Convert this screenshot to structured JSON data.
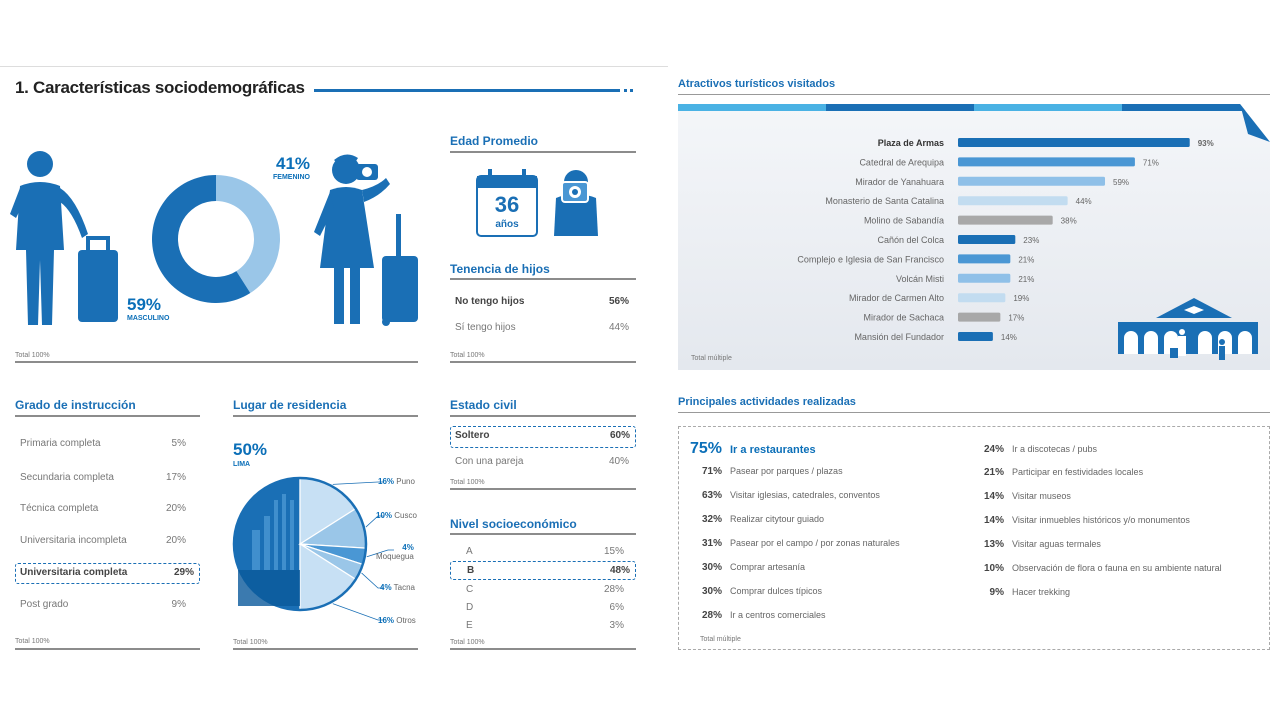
{
  "section_title": "1. Características sociodemográficas",
  "gender": {
    "female_pct": "41%",
    "female_label": "FEMENINO",
    "male_pct": "59%",
    "male_label": "MASCULINO",
    "total": "Total 100%"
  },
  "edad": {
    "title": "Edad Promedio",
    "value": "36",
    "unit": "años"
  },
  "hijos": {
    "title": "Tenencia de hijos",
    "rows": [
      {
        "label": "No tengo hijos",
        "value": "56%"
      },
      {
        "label": "Sí tengo hijos",
        "value": "44%"
      }
    ],
    "total": "Total 100%"
  },
  "instruccion": {
    "title": "Grado de instrucción",
    "rows": [
      {
        "label": "Primaria completa",
        "value": "5%"
      },
      {
        "label": "Secundaria completa",
        "value": "17%"
      },
      {
        "label": "Técnica completa",
        "value": "20%"
      },
      {
        "label": "Universitaria incompleta",
        "value": "20%"
      },
      {
        "label": "Universitaria completa",
        "value": "29%"
      },
      {
        "label": "Post grado",
        "value": "9%"
      }
    ],
    "total": "Total 100%"
  },
  "residencia": {
    "title": "Lugar de residencia",
    "main_pct": "50%",
    "main_label": "LIMA",
    "labels": [
      {
        "pct": "16%",
        "name": "Puno"
      },
      {
        "pct": "10%",
        "name": "Cusco"
      },
      {
        "pct": "4%",
        "name": "Moquegua"
      },
      {
        "pct": "4%",
        "name": "Tacna"
      },
      {
        "pct": "16%",
        "name": "Otros"
      }
    ],
    "total": "Total 100%"
  },
  "civil": {
    "title": "Estado civil",
    "rows": [
      {
        "label": "Soltero",
        "value": "60%"
      },
      {
        "label": "Con una pareja",
        "value": "40%"
      }
    ],
    "total": "Total 100%"
  },
  "nse": {
    "title": "Nivel socioeconómico",
    "rows": [
      {
        "label": "A",
        "value": "15%"
      },
      {
        "label": "B",
        "value": "48%"
      },
      {
        "label": "C",
        "value": "28%"
      },
      {
        "label": "D",
        "value": "6%"
      },
      {
        "label": "E",
        "value": "3%"
      }
    ],
    "total": "Total 100%"
  },
  "atractivos": {
    "title": "Atractivos turísticos visitados",
    "total": "Total múltiple"
  },
  "actividades": {
    "title": "Principales actividades realizadas",
    "left": [
      {
        "pct": "75%",
        "label": "Ir a restaurantes"
      },
      {
        "pct": "71%",
        "label": "Pasear por parques / plazas"
      },
      {
        "pct": "63%",
        "label": "Visitar iglesias, catedrales, conventos"
      },
      {
        "pct": "32%",
        "label": "Realizar citytour guiado"
      },
      {
        "pct": "31%",
        "label": "Pasear por el campo / por zonas naturales"
      },
      {
        "pct": "30%",
        "label": "Comprar artesanía"
      },
      {
        "pct": "30%",
        "label": "Comprar dulces típicos"
      },
      {
        "pct": "28%",
        "label": "Ir a centros comerciales"
      }
    ],
    "right": [
      {
        "pct": "24%",
        "label": "Ir a discotecas / pubs"
      },
      {
        "pct": "21%",
        "label": "Participar en festividades locales"
      },
      {
        "pct": "14%",
        "label": "Visitar museos"
      },
      {
        "pct": "14%",
        "label": "Visitar inmuebles históricos y/o monumentos"
      },
      {
        "pct": "13%",
        "label": "Visitar aguas termales"
      },
      {
        "pct": "10%",
        "label": "Observación de flora o fauna en su ambiente natural"
      },
      {
        "pct": "9%",
        "label": "Hacer trekking"
      }
    ],
    "total": "Total múltiple"
  },
  "chart_data": [
    {
      "type": "pie",
      "categories": [
        "Masculino",
        "Femenino"
      ],
      "values": [
        59,
        41
      ]
    },
    {
      "type": "pie",
      "categories": [
        "Lima",
        "Puno",
        "Cusco",
        "Moquegua",
        "Tacna",
        "Otros"
      ],
      "values": [
        50,
        16,
        10,
        4,
        4,
        16
      ]
    },
    {
      "type": "bar",
      "categories": [
        "Plaza de Armas",
        "Catedral de Arequipa",
        "Mirador de Yanahuara",
        "Monasterio de Santa Catalina",
        "Molino de Sabandía",
        "Cañón del Colca",
        "Complejo e Iglesia de San Francisco",
        "Volcán Misti",
        "Mirador de Carmen Alto",
        "Mirador de Sachaca",
        "Mansión del Fundador"
      ],
      "values": [
        93,
        71,
        59,
        44,
        38,
        23,
        21,
        21,
        19,
        17,
        14
      ],
      "value_labels": [
        "93%",
        "71%",
        "59%",
        "44%",
        "38%",
        "23%",
        "21%",
        "21%",
        "19%",
        "17%",
        "14%"
      ],
      "colors": [
        "#1a6fb5",
        "#4a97d4",
        "#8fc0e8",
        "#c2dcf0",
        "#a8a8a8",
        "#1a6fb5",
        "#4a97d4",
        "#8fc0e8",
        "#c2dcf0",
        "#a8a8a8",
        "#1a6fb5"
      ]
    }
  ]
}
